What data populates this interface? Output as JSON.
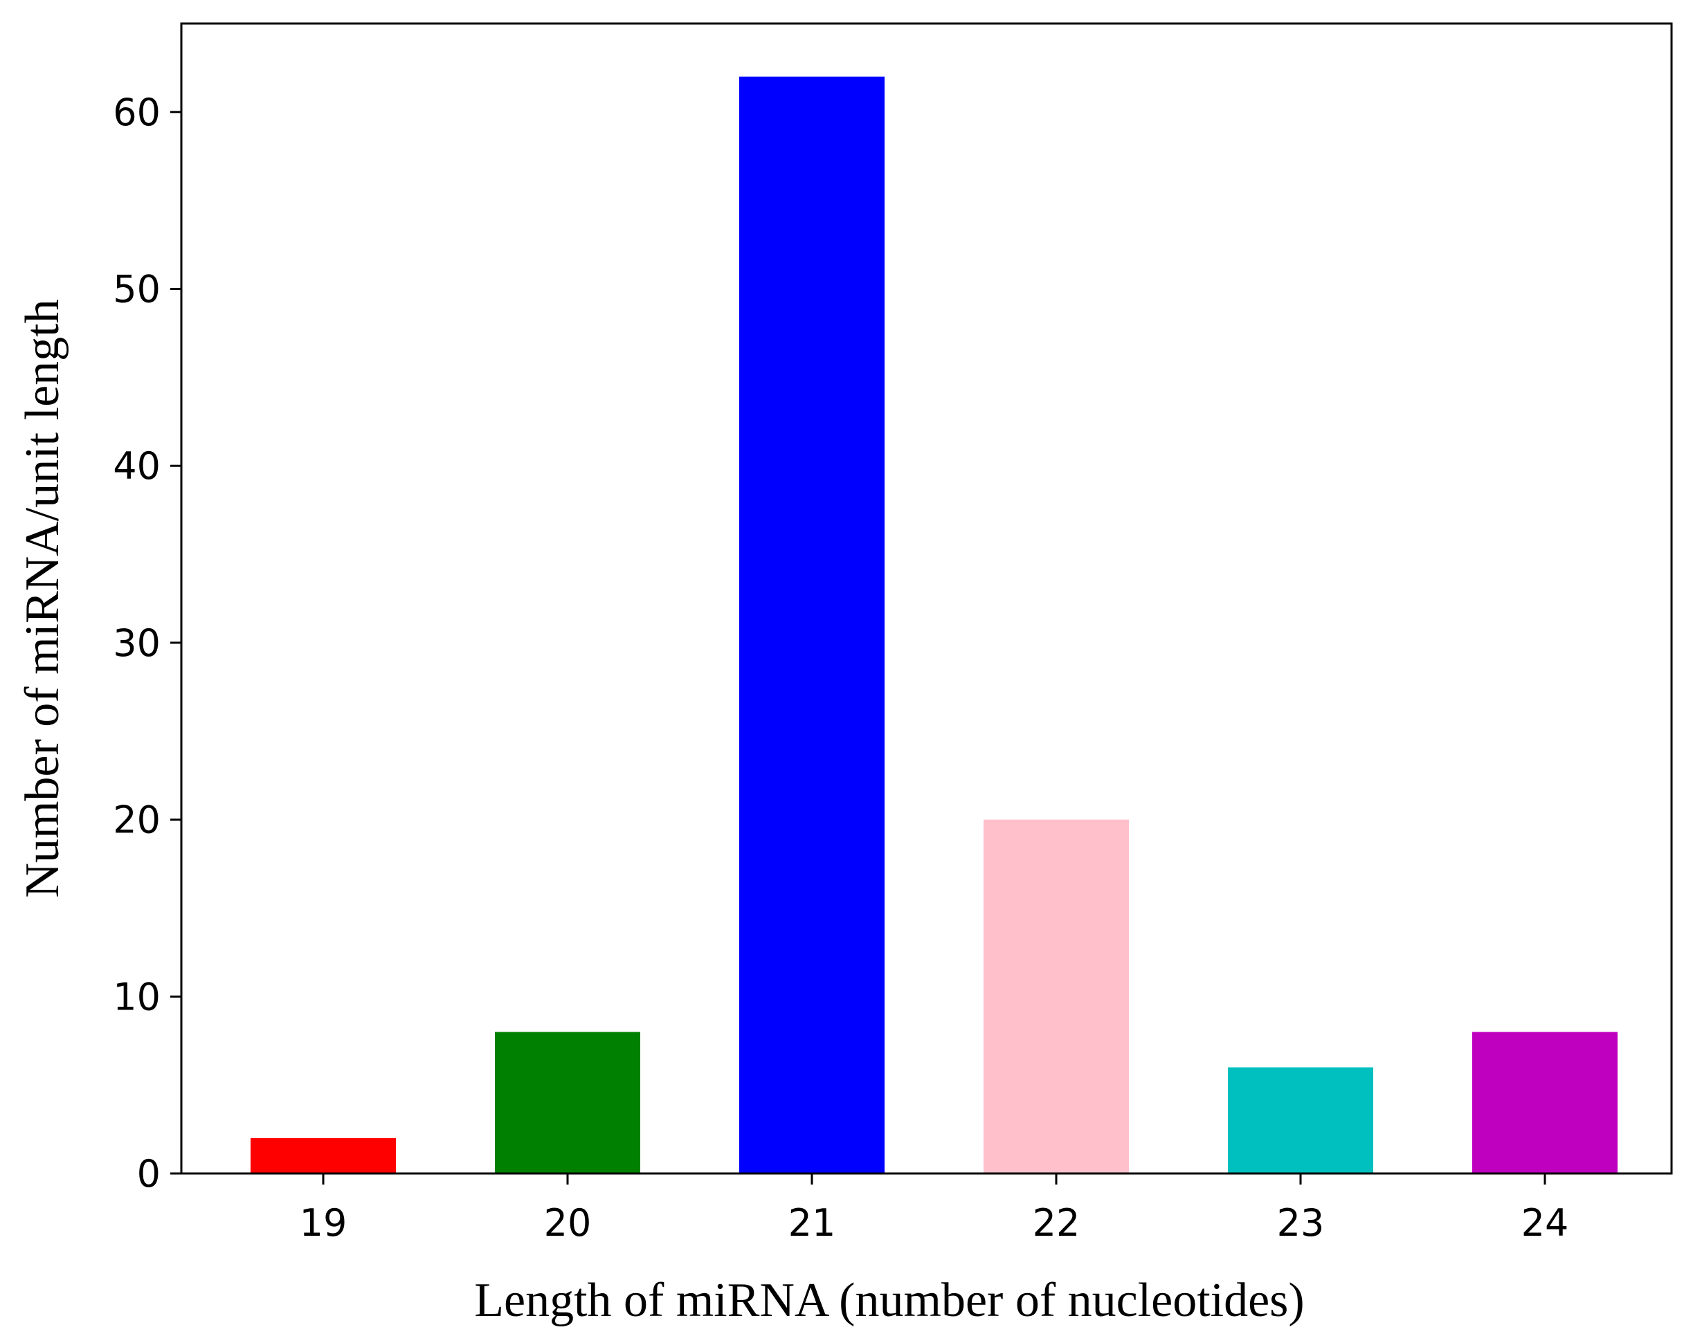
{
  "chart_data": {
    "type": "bar",
    "categories": [
      "19",
      "20",
      "21",
      "22",
      "23",
      "24"
    ],
    "values": [
      2,
      8,
      62,
      20,
      6,
      8
    ],
    "colors": [
      "#ff0000",
      "#008000",
      "#0000ff",
      "#ffc0cb",
      "#00bfbf",
      "#bf00bf"
    ],
    "title": "",
    "xlabel": "Length of miRNA (number of nucleotides)",
    "ylabel": "Number of miRNA/unit length",
    "ylim": [
      0,
      65
    ],
    "yticks": [
      0,
      10,
      20,
      30,
      40,
      50,
      60
    ],
    "grid": false,
    "legend": "none"
  }
}
